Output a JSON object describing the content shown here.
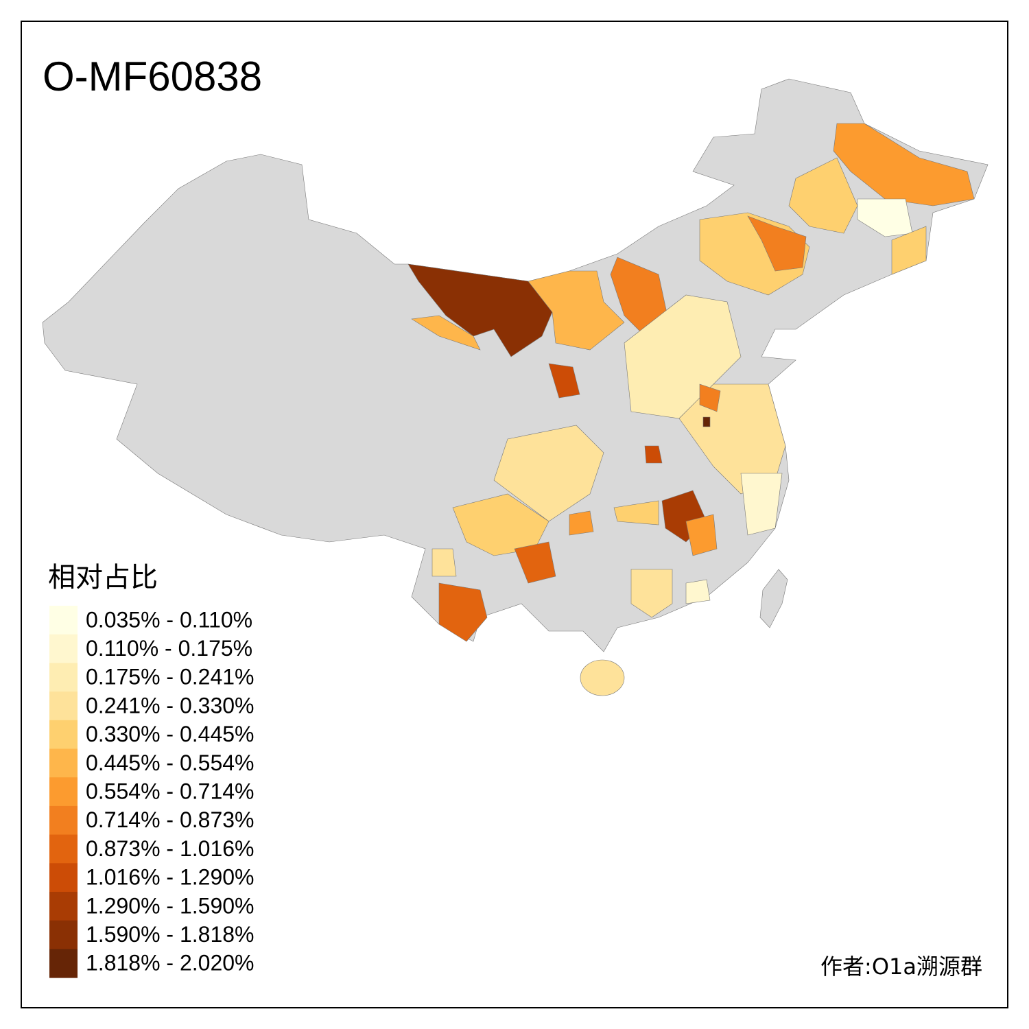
{
  "title": "O-MF60838",
  "legend": {
    "title": "相对占比",
    "items": [
      {
        "label": "0.035% - 0.110%",
        "color": "#ffffe5"
      },
      {
        "label": "0.110% - 0.175%",
        "color": "#fff7cf"
      },
      {
        "label": "0.175% - 0.241%",
        "color": "#feedb2"
      },
      {
        "label": "0.241% - 0.330%",
        "color": "#fee29a"
      },
      {
        "label": "0.330% - 0.445%",
        "color": "#fed06f"
      },
      {
        "label": "0.445% - 0.554%",
        "color": "#feb64b"
      },
      {
        "label": "0.554% - 0.714%",
        "color": "#fc9b2f"
      },
      {
        "label": "0.714% - 0.873%",
        "color": "#f27f1f"
      },
      {
        "label": "0.873% - 1.016%",
        "color": "#e2640f"
      },
      {
        "label": "1.016% - 1.290%",
        "color": "#cc4c06"
      },
      {
        "label": "1.290% - 1.590%",
        "color": "#a93c04"
      },
      {
        "label": "1.590% - 1.818%",
        "color": "#8a3004"
      },
      {
        "label": "1.818% - 2.020%",
        "color": "#662506"
      }
    ]
  },
  "author": "作者:O1a溯源群"
}
